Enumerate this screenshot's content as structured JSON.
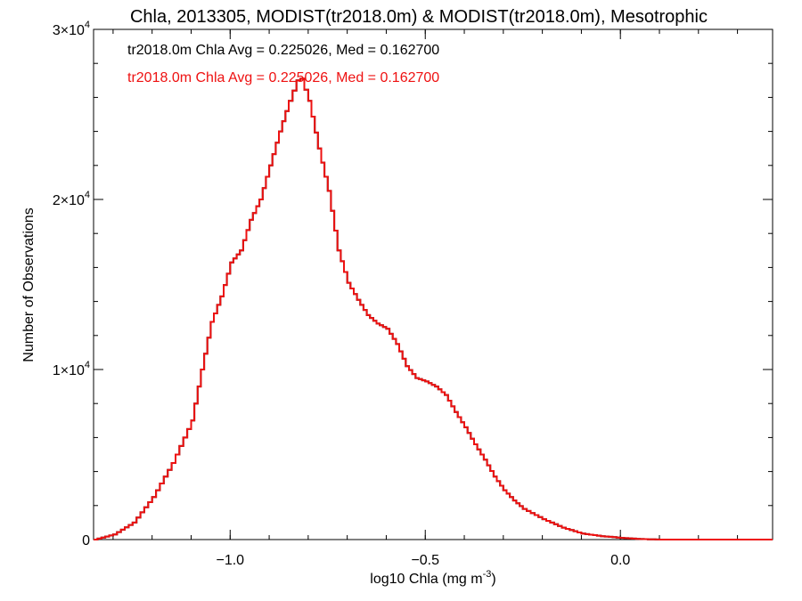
{
  "chart_data": {
    "type": "line",
    "title": "Chla, 2013305, MODIST(tr2018.0m) & MODIST(tr2018.0m), Mesotrophic",
    "xlabel": {
      "text": "log10 Chla (mg m",
      "sup": "-3",
      "suffix": ")"
    },
    "ylabel": "Number of Observations",
    "xlim": [
      -1.35,
      0.39
    ],
    "ylim": [
      0,
      30000
    ],
    "x_ticks": [
      {
        "value": -1.0,
        "label": "−1.0"
      },
      {
        "value": -0.5,
        "label": "−0.5"
      },
      {
        "value": 0.0,
        "label": "0.0"
      }
    ],
    "y_ticks": [
      {
        "value": 0,
        "label": "0",
        "exp": ""
      },
      {
        "value": 10000,
        "label": "1×10",
        "exp": "4"
      },
      {
        "value": 20000,
        "label": "2×10",
        "exp": "4"
      },
      {
        "value": 30000,
        "label": "3×10",
        "exp": "4"
      }
    ],
    "annotations": [
      {
        "text": "tr2018.0m Chla Avg = 0.225026, Med = 0.162700",
        "color": "#000000"
      },
      {
        "text": "tr2018.0m Chla Avg = 0.225026, Med = 0.162700",
        "color": "#ee1111"
      }
    ],
    "series": [
      {
        "color_primary": "#000000",
        "color_overlay": "#ee1111",
        "x": [
          -1.35,
          -1.3,
          -1.25,
          -1.2,
          -1.15,
          -1.1,
          -1.075,
          -1.05,
          -1.025,
          -1.0,
          -0.975,
          -0.95,
          -0.925,
          -0.9,
          -0.875,
          -0.85,
          -0.84,
          -0.83,
          -0.82,
          -0.8,
          -0.775,
          -0.75,
          -0.725,
          -0.7,
          -0.675,
          -0.65,
          -0.625,
          -0.6,
          -0.575,
          -0.55,
          -0.525,
          -0.5,
          -0.475,
          -0.45,
          -0.425,
          -0.4,
          -0.375,
          -0.35,
          -0.325,
          -0.3,
          -0.275,
          -0.25,
          -0.2,
          -0.15,
          -0.1,
          -0.05,
          0.0,
          0.05,
          0.1,
          0.15,
          0.2,
          0.25,
          0.3,
          0.35,
          0.39
        ],
        "y": [
          0,
          300,
          1000,
          2500,
          4500,
          7000,
          10000,
          12800,
          14300,
          16300,
          17000,
          18800,
          20000,
          22000,
          24000,
          25800,
          26400,
          27000,
          27100,
          25800,
          23000,
          20500,
          17000,
          15100,
          14100,
          13200,
          12700,
          12400,
          11500,
          10200,
          9500,
          9300,
          9000,
          8500,
          7500,
          6600,
          5600,
          4700,
          3700,
          2900,
          2300,
          1800,
          1200,
          700,
          350,
          200,
          100,
          30,
          0,
          0,
          0,
          0,
          0,
          0,
          0
        ]
      }
    ]
  }
}
